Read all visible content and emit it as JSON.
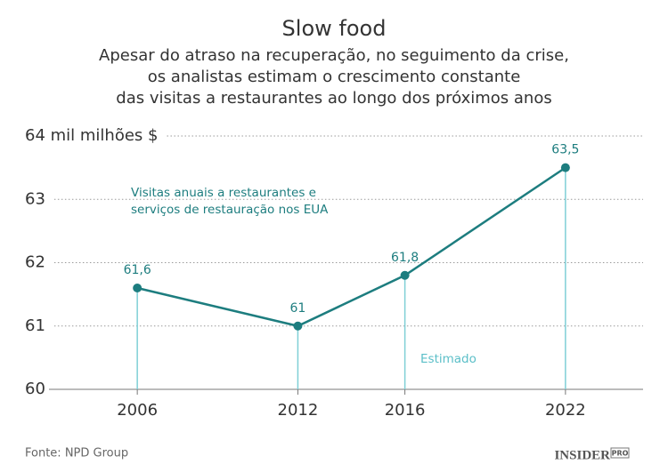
{
  "chart_data": {
    "type": "line",
    "title": "Slow food",
    "subtitle": [
      "Apesar do atraso na recuperação, no seguimento da crise,",
      "os analistas estimam o crescimento constante",
      "das visitas a restaurantes ao longo dos próximos anos"
    ],
    "x": [
      2006,
      2012,
      2016,
      2022
    ],
    "series": [
      {
        "name": "Visitas anuais a restaurantes e serviços de restauração nos EUA",
        "color": "#1d7d7f",
        "values": [
          61.6,
          61,
          61.8,
          63.5
        ],
        "value_labels": [
          "61,6",
          "61",
          "61,8",
          "63,5"
        ]
      }
    ],
    "annotation": [
      "Visitas anuais a restaurantes e",
      "serviços de restauração nos EUA"
    ],
    "estimate_label": "Estimado",
    "drop_line_color": "#7fcfd6",
    "xlim": [
      2002.7,
      2024.9
    ],
    "xticks": [
      2006,
      2012,
      2016,
      2022
    ],
    "ylim": [
      60,
      64
    ],
    "yticks": [
      60,
      61,
      62,
      63,
      {
        "value": 64,
        "label": "64 mil milhões $"
      }
    ],
    "grid": true,
    "source": "Fonte: NPD Group",
    "logo": {
      "name": "INSIDER",
      "tag": "PRO"
    }
  }
}
